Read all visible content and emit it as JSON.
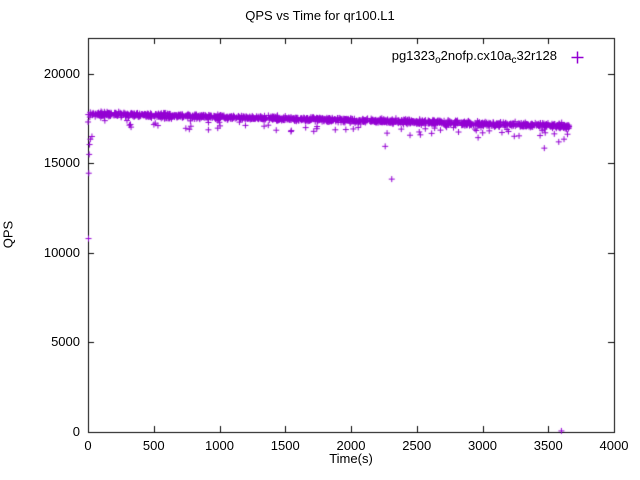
{
  "chart_data": {
    "type": "scatter",
    "title": "QPS vs Time for qr100.L1",
    "xlabel": "Time(s)",
    "ylabel": "QPS",
    "xlim": [
      0,
      4000
    ],
    "ylim": [
      0,
      22000
    ],
    "xticks": [
      0,
      500,
      1000,
      1500,
      2000,
      2500,
      3000,
      3500,
      4000
    ],
    "yticks": [
      0,
      5000,
      10000,
      15000,
      20000
    ],
    "grid": false,
    "legend_position": "top-right-inside",
    "marker": "plus",
    "marker_color": "#9400D3",
    "axis_color": "#000000",
    "series": [
      {
        "name": "pg1323_o2nofp.cx10a_c32r128",
        "label_parts": [
          {
            "text": "pg1323",
            "sub": false
          },
          {
            "text": "o",
            "sub": true
          },
          {
            "text": "2nofp.cx10a",
            "sub": false
          },
          {
            "text": "c",
            "sub": true
          },
          {
            "text": "32r128",
            "sub": false
          }
        ],
        "band": {
          "x_start": 0,
          "x_end": 3660,
          "n_points": 1500,
          "y_start_mean": 17780,
          "y_end_mean": 17080,
          "jitter": 110,
          "dip_probability": 0.06,
          "dip_max": 700,
          "seed": 42
        },
        "outliers": [
          [
            4,
            10800
          ],
          [
            6,
            14450
          ],
          [
            9,
            15500
          ],
          [
            12,
            16050
          ],
          [
            18,
            16350
          ],
          [
            30,
            16500
          ],
          [
            2260,
            15950
          ],
          [
            2310,
            14120
          ],
          [
            3470,
            15850
          ],
          [
            3580,
            16200
          ],
          [
            3600,
            60
          ],
          [
            3620,
            16350
          ],
          [
            3640,
            16900
          ]
        ]
      }
    ]
  }
}
